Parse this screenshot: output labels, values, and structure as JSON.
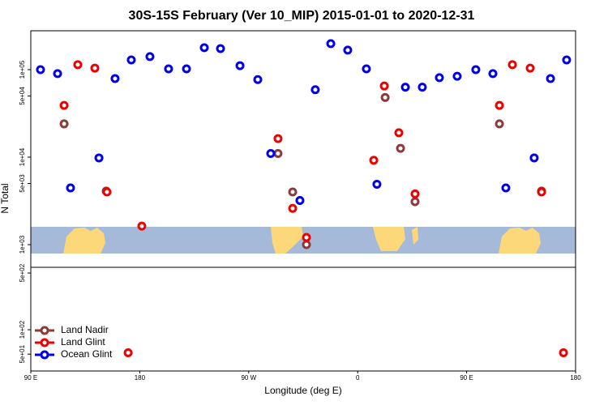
{
  "chart_data": [
    {
      "type": "scatter",
      "title": "30S-15S February (Ver 10_MIP)   2015-01-01 to 2020-12-31",
      "ylabel": "N Total",
      "log": true,
      "xlim": [
        90,
        540
      ],
      "ylim": [
        551,
        278000
      ],
      "yticks": [
        {
          "value": 1000,
          "label": "1e+03"
        },
        {
          "value": 5000,
          "label": "5e+03"
        },
        {
          "value": 10000,
          "label": "1e+04"
        },
        {
          "value": 50000,
          "label": "5e+04"
        },
        {
          "value": 100000,
          "label": "1e+05"
        }
      ],
      "series": [
        {
          "color": "#8b3a3a",
          "x": [
            117.5,
            152.3,
            294.2,
            306.3,
            317.7,
            382.7,
            395.4,
            407.4,
            477.1,
            511.9
          ],
          "values": [
            24000,
            4100,
            11000,
            4000,
            1000,
            48000,
            12600,
            3100,
            24000,
            4100
          ]
        },
        {
          "color": "#ee0000",
          "x": [
            117.5,
            128.8,
            142.9,
            152.9,
            181.7,
            294.2,
            306.3,
            317.7,
            373.3,
            382.0,
            394.0,
            407.4,
            477.1,
            487.8,
            502.5,
            511.9
          ],
          "values": [
            39000,
            114000,
            104000,
            4000,
            1630,
            16300,
            2600,
            1210,
            9200,
            65000,
            19000,
            3800,
            39000,
            114000,
            104000,
            4000
          ]
        },
        {
          "color": "#0000ee",
          "x": [
            98.0,
            112.1,
            122.8,
            146.3,
            159.6,
            173.0,
            188.4,
            203.8,
            218.6,
            233.3,
            246.7,
            262.8,
            277.5,
            288.2,
            312.3,
            325.0,
            337.8,
            351.8,
            367.2,
            375.9,
            399.4,
            413.4,
            427.5,
            442.2,
            457.6,
            471.7,
            482.4,
            505.8,
            519.3,
            532.6
          ],
          "values": [
            100000,
            90000,
            4450,
            9800,
            79000,
            129000,
            141000,
            102000,
            102000,
            178000,
            174000,
            111000,
            77000,
            11000,
            3200,
            59000,
            198000,
            167000,
            102000,
            4900,
            63000,
            63000,
            81000,
            84000,
            100000,
            90000,
            4450,
            9800,
            79000,
            129000
          ]
        }
      ]
    },
    {
      "type": "scatter",
      "xlabel": "Longitude (deg E)",
      "log": true,
      "xlim": [
        90,
        540
      ],
      "ylim": [
        31,
        588
      ],
      "xticks": [
        {
          "value": 90,
          "label": "90 E"
        },
        180,
        {
          "value": 270,
          "label": "90 W"
        },
        {
          "value": 360,
          "label": "0"
        },
        {
          "value": 450,
          "label": "90 E"
        },
        {
          "value": 540,
          "label": "180"
        }
      ],
      "yticks": [
        {
          "value": 50,
          "label": "5e+01"
        },
        {
          "value": 100,
          "label": "1e+02"
        },
        {
          "value": 500,
          "label": "5e+02"
        }
      ],
      "series": [
        {
          "name": "Land Nadir",
          "color": "#8b3a3a",
          "x": [],
          "values": []
        },
        {
          "name": "Land Glint",
          "color": "#ee0000",
          "x": [
            170.4,
            530.0
          ],
          "values": [
            52,
            52
          ]
        },
        {
          "name": "Ocean Glint",
          "color": "#0000ee",
          "x": [],
          "values": []
        }
      ]
    }
  ]
}
